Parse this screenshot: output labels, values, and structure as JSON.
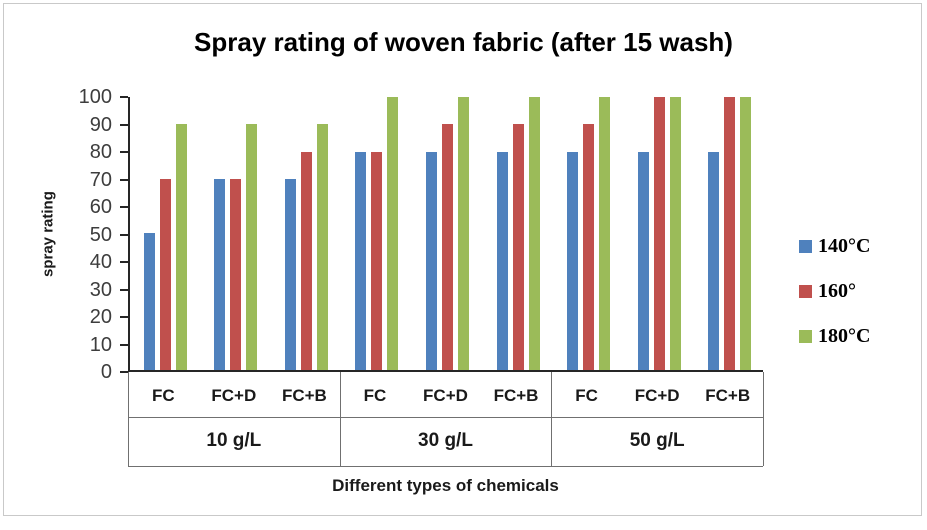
{
  "chart_data": {
    "type": "bar",
    "title": "Spray rating of woven fabric (after 15 wash)",
    "xlabel": "Different types of chemicals",
    "ylabel": "spray rating",
    "ylim": [
      0,
      100
    ],
    "ytick_step": 10,
    "grid": false,
    "legend_position": "right",
    "group_labels": [
      "10 g/L",
      "30 g/L",
      "50 g/L"
    ],
    "categories": [
      "FC",
      "FC+D",
      "FC+B",
      "FC",
      "FC+D",
      "FC+B",
      "FC",
      "FC+D",
      "FC+B"
    ],
    "series": [
      {
        "name": "140°C",
        "color": "#4f81bd",
        "values": [
          50,
          70,
          70,
          80,
          80,
          80,
          80,
          80,
          80
        ]
      },
      {
        "name": "160°",
        "color": "#c0504d",
        "values": [
          70,
          70,
          80,
          80,
          90,
          90,
          90,
          100,
          100
        ]
      },
      {
        "name": "180°C",
        "color": "#9bbb59",
        "values": [
          90,
          90,
          90,
          100,
          100,
          100,
          100,
          100,
          100
        ]
      }
    ]
  }
}
